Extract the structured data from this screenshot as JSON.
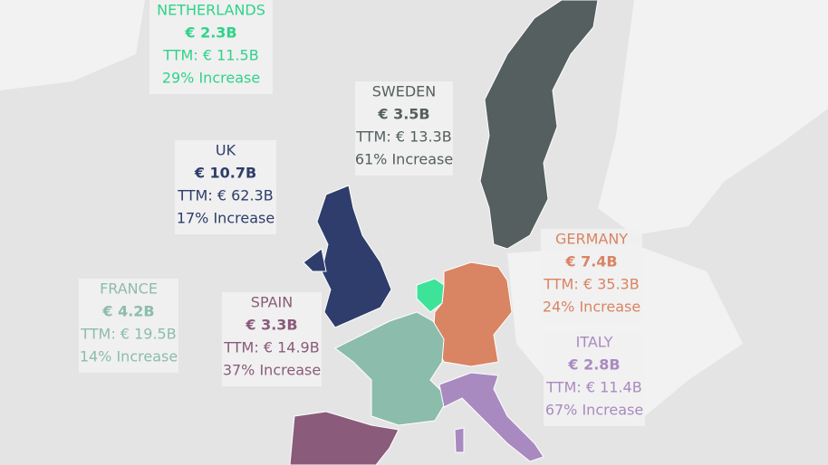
{
  "countries": [
    {
      "name": "NETHERLANDS",
      "value": "€ 2.3B",
      "ttm": "TTM: € 11.5B",
      "increase": "29% Increase"
    },
    {
      "name": "SWEDEN",
      "value": "€ 3.5B",
      "ttm": "TTM: € 13.3B",
      "increase": "61% Increase"
    },
    {
      "name": "UK",
      "value": "€ 10.7B",
      "ttm": "TTM: € 62.3B",
      "increase": "17% Increase"
    },
    {
      "name": "GERMANY",
      "value": "€ 7.4B",
      "ttm": "TTM: € 35.3B",
      "increase": "24% Increase"
    },
    {
      "name": "FRANCE",
      "value": "€ 4.2B",
      "ttm": "TTM: € 19.5B",
      "increase": "14% Increase"
    },
    {
      "name": "SPAIN",
      "value": "€ 3.3B",
      "ttm": "TTM: € 14.9B",
      "increase": "37% Increase"
    },
    {
      "name": "ITALY",
      "value": "€ 2.8B",
      "ttm": "TTM: € 11.4B",
      "increase": "67% Increase"
    }
  ]
}
